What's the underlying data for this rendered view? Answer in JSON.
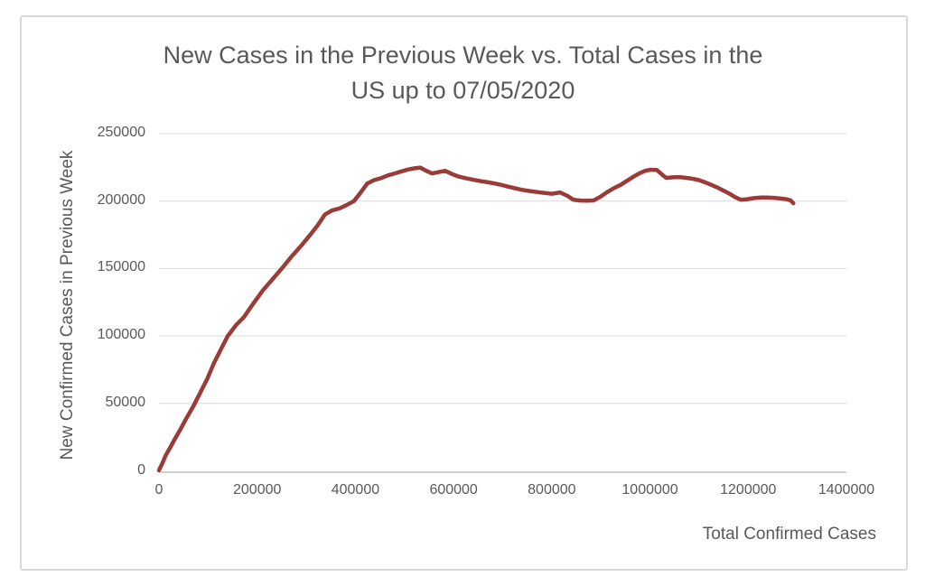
{
  "chart": {
    "title_lines": [
      "New Cases in the Previous Week vs. Total Cases in the",
      "US up to 07/05/2020"
    ],
    "x_axis_title": "Total Confirmed Cases",
    "y_axis_title": "New Confirmed Cases in Previous Week"
  },
  "colors": {
    "line": "#9A3B38",
    "text": "#595959",
    "gridline": "#d9d9d9",
    "axis_line": "#bfbfbf",
    "frame_border": "#d9d9d9",
    "background": "#ffffff"
  },
  "chart_data": {
    "type": "line",
    "title": "New Cases in the Previous Week vs. Total Cases in the US up to 07/05/2020",
    "xlabel": "Total Confirmed Cases",
    "ylabel": "New Confirmed Cases in Previous Week",
    "xlim": [
      0,
      1400000
    ],
    "ylim": [
      0,
      250000
    ],
    "x_ticks": [
      0,
      200000,
      400000,
      600000,
      800000,
      1000000,
      1200000,
      1400000
    ],
    "y_ticks": [
      0,
      50000,
      100000,
      150000,
      200000,
      250000
    ],
    "grid": "horizontal-only",
    "legend": "none",
    "line_color": "#9A3B38",
    "line_width": 4.5,
    "points": [
      [
        0,
        500
      ],
      [
        4000,
        3500
      ],
      [
        8000,
        6500
      ],
      [
        13000,
        11000
      ],
      [
        16000,
        13000
      ],
      [
        24000,
        18000
      ],
      [
        33000,
        24000
      ],
      [
        44000,
        31000
      ],
      [
        56000,
        39000
      ],
      [
        70000,
        48000
      ],
      [
        84000,
        58000
      ],
      [
        98000,
        68000
      ],
      [
        112000,
        80000
      ],
      [
        126000,
        90000
      ],
      [
        140000,
        100000
      ],
      [
        157000,
        108000
      ],
      [
        173000,
        114000
      ],
      [
        192000,
        124000
      ],
      [
        212000,
        134000
      ],
      [
        231000,
        142000
      ],
      [
        250000,
        150000
      ],
      [
        270000,
        159000
      ],
      [
        290000,
        167000
      ],
      [
        308000,
        175000
      ],
      [
        323000,
        182000
      ],
      [
        338000,
        190000
      ],
      [
        352000,
        193000
      ],
      [
        367000,
        194500
      ],
      [
        382000,
        197000
      ],
      [
        397000,
        200000
      ],
      [
        410000,
        206000
      ],
      [
        424000,
        213000
      ],
      [
        438000,
        215500
      ],
      [
        452000,
        217000
      ],
      [
        466000,
        219000
      ],
      [
        480000,
        220500
      ],
      [
        494000,
        222000
      ],
      [
        508000,
        223500
      ],
      [
        521000,
        224300
      ],
      [
        532000,
        224800
      ],
      [
        544000,
        222500
      ],
      [
        556000,
        220500
      ],
      [
        570000,
        221500
      ],
      [
        583000,
        222400
      ],
      [
        597000,
        220000
      ],
      [
        610000,
        218200
      ],
      [
        624000,
        217000
      ],
      [
        638000,
        216000
      ],
      [
        652000,
        215000
      ],
      [
        666000,
        214200
      ],
      [
        680000,
        213300
      ],
      [
        695000,
        212200
      ],
      [
        710000,
        210800
      ],
      [
        725000,
        209500
      ],
      [
        740000,
        208300
      ],
      [
        755000,
        207400
      ],
      [
        770000,
        206700
      ],
      [
        785000,
        206000
      ],
      [
        800000,
        205400
      ],
      [
        817000,
        206400
      ],
      [
        832000,
        203800
      ],
      [
        844000,
        201000
      ],
      [
        858000,
        200400
      ],
      [
        872000,
        200300
      ],
      [
        885000,
        200500
      ],
      [
        898000,
        203000
      ],
      [
        912000,
        206400
      ],
      [
        926000,
        209500
      ],
      [
        940000,
        212000
      ],
      [
        953000,
        215000
      ],
      [
        966000,
        218000
      ],
      [
        978000,
        220500
      ],
      [
        990000,
        222400
      ],
      [
        1001000,
        223200
      ],
      [
        1014000,
        223000
      ],
      [
        1025000,
        219500
      ],
      [
        1033000,
        217200
      ],
      [
        1046000,
        217600
      ],
      [
        1060000,
        217800
      ],
      [
        1074000,
        217200
      ],
      [
        1087000,
        216500
      ],
      [
        1100000,
        215500
      ],
      [
        1113000,
        213800
      ],
      [
        1126000,
        211800
      ],
      [
        1139000,
        209800
      ],
      [
        1151000,
        207500
      ],
      [
        1163000,
        205200
      ],
      [
        1175000,
        202600
      ],
      [
        1185000,
        201000
      ],
      [
        1198000,
        201400
      ],
      [
        1212000,
        202200
      ],
      [
        1226000,
        202600
      ],
      [
        1240000,
        202700
      ],
      [
        1252000,
        202400
      ],
      [
        1264000,
        202000
      ],
      [
        1277000,
        201500
      ],
      [
        1286000,
        200600
      ],
      [
        1292000,
        198400
      ]
    ]
  }
}
